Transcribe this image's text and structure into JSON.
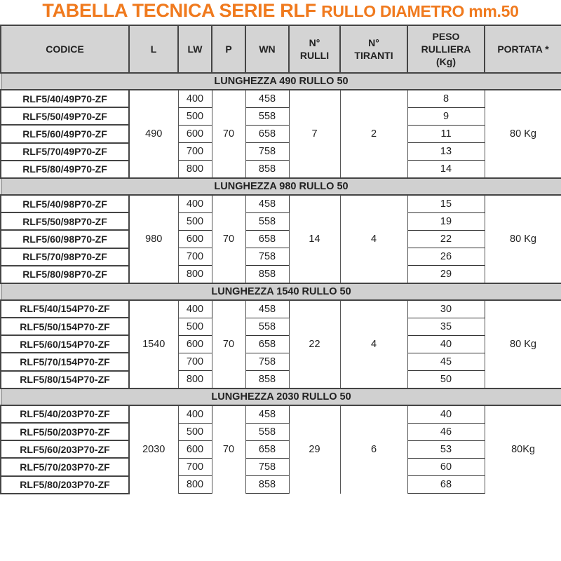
{
  "title": {
    "main": "TABELLA TECNICA SERIE RLF",
    "sub": "RULLO DIAMETRO mm.50"
  },
  "colors": {
    "title": "#f07a1e",
    "header_bg": "#d4d4d4",
    "code_bg": "#c8c8c8"
  },
  "headers": [
    "CODICE",
    "L",
    "LW",
    "P",
    "WN",
    "N°\nRULLI",
    "N°\nTIRANTI",
    "PESO\nRULLIERA\n(Kg)",
    "PORTATA *"
  ],
  "sections": [
    {
      "label": "LUNGHEZZA 490 RULLO 50",
      "L": "490",
      "P": "70",
      "rulli": "7",
      "tiranti": "2",
      "portata": "80 Kg",
      "rows": [
        {
          "codice": "RLF5/40/49P70-ZF",
          "LW": "400",
          "WN": "458",
          "peso": "8"
        },
        {
          "codice": "RLF5/50/49P70-ZF",
          "LW": "500",
          "WN": "558",
          "peso": "9"
        },
        {
          "codice": "RLF5/60/49P70-ZF",
          "LW": "600",
          "WN": "658",
          "peso": "11"
        },
        {
          "codice": "RLF5/70/49P70-ZF",
          "LW": "700",
          "WN": "758",
          "peso": "13"
        },
        {
          "codice": "RLF5/80/49P70-ZF",
          "LW": "800",
          "WN": "858",
          "peso": "14"
        }
      ]
    },
    {
      "label": "LUNGHEZZA 980 RULLO 50",
      "L": "980",
      "P": "70",
      "rulli": "14",
      "tiranti": "4",
      "portata": "80 Kg",
      "rows": [
        {
          "codice": "RLF5/40/98P70-ZF",
          "LW": "400",
          "WN": "458",
          "peso": "15"
        },
        {
          "codice": "RLF5/50/98P70-ZF",
          "LW": "500",
          "WN": "558",
          "peso": "19"
        },
        {
          "codice": "RLF5/60/98P70-ZF",
          "LW": "600",
          "WN": "658",
          "peso": "22"
        },
        {
          "codice": "RLF5/70/98P70-ZF",
          "LW": "700",
          "WN": "758",
          "peso": "26"
        },
        {
          "codice": "RLF5/80/98P70-ZF",
          "LW": "800",
          "WN": "858",
          "peso": "29"
        }
      ]
    },
    {
      "label": "LUNGHEZZA 1540 RULLO 50",
      "L": "1540",
      "P": "70",
      "rulli": "22",
      "tiranti": "4",
      "portata": "80 Kg",
      "rows": [
        {
          "codice": "RLF5/40/154P70-ZF",
          "LW": "400",
          "WN": "458",
          "peso": "30"
        },
        {
          "codice": "RLF5/50/154P70-ZF",
          "LW": "500",
          "WN": "558",
          "peso": "35"
        },
        {
          "codice": "RLF5/60/154P70-ZF",
          "LW": "600",
          "WN": "658",
          "peso": "40"
        },
        {
          "codice": "RLF5/70/154P70-ZF",
          "LW": "700",
          "WN": "758",
          "peso": "45"
        },
        {
          "codice": "RLF5/80/154P70-ZF",
          "LW": "800",
          "WN": "858",
          "peso": "50"
        }
      ]
    },
    {
      "label": "LUNGHEZZA 2030 RULLO 50",
      "L": "2030",
      "P": "70",
      "rulli": "29",
      "tiranti": "6",
      "portata": "80Kg",
      "rows": [
        {
          "codice": "RLF5/40/203P70-ZF",
          "LW": "400",
          "WN": "458",
          "peso": "40"
        },
        {
          "codice": "RLF5/50/203P70-ZF",
          "LW": "500",
          "WN": "558",
          "peso": "46"
        },
        {
          "codice": "RLF5/60/203P70-ZF",
          "LW": "600",
          "WN": "658",
          "peso": "53"
        },
        {
          "codice": "RLF5/70/203P70-ZF",
          "LW": "700",
          "WN": "758",
          "peso": "60"
        },
        {
          "codice": "RLF5/80/203P70-ZF",
          "LW": "800",
          "WN": "858",
          "peso": "68"
        }
      ]
    }
  ]
}
